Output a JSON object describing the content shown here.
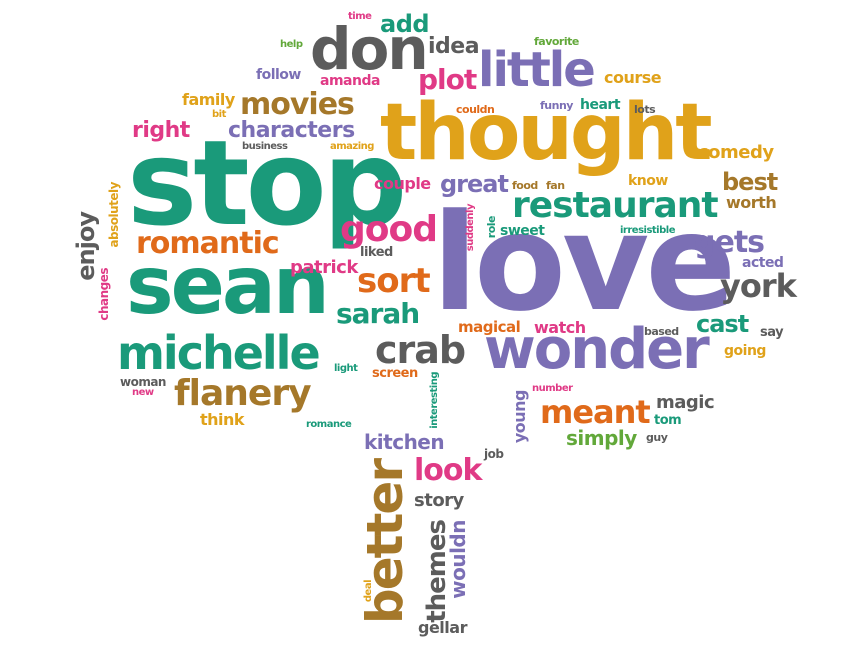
{
  "palette": {
    "teal": "#1a9a7a",
    "purple": "#7b6fb5",
    "gold": "#e0a21a",
    "pink": "#e03a86",
    "brown": "#a5782a",
    "gray": "#5c5c5c",
    "orange": "#e06a1a",
    "green": "#62a83a"
  },
  "words": [
    {
      "id": "love",
      "text": "love",
      "color": "purple"
    },
    {
      "id": "stop",
      "text": "stop",
      "color": "teal"
    },
    {
      "id": "thought",
      "text": "thought",
      "color": "gold"
    },
    {
      "id": "sean",
      "text": "sean",
      "color": "teal"
    },
    {
      "id": "wonder",
      "text": "wonder",
      "color": "purple"
    },
    {
      "id": "michelle",
      "text": "michelle",
      "color": "teal"
    },
    {
      "id": "don",
      "text": "don",
      "color": "gray"
    },
    {
      "id": "little",
      "text": "little",
      "color": "purple"
    },
    {
      "id": "better",
      "text": "better",
      "color": "brown"
    },
    {
      "id": "restaurant",
      "text": "restaurant",
      "color": "teal"
    },
    {
      "id": "flanery",
      "text": "flanery",
      "color": "brown"
    },
    {
      "id": "crab",
      "text": "crab",
      "color": "gray"
    },
    {
      "id": "movies",
      "text": "movies",
      "color": "brown"
    },
    {
      "id": "good",
      "text": "good",
      "color": "pink"
    },
    {
      "id": "romantic",
      "text": "romantic",
      "color": "orange"
    },
    {
      "id": "sort",
      "text": "sort",
      "color": "orange"
    },
    {
      "id": "sarah",
      "text": "sarah",
      "color": "teal"
    },
    {
      "id": "meant",
      "text": "meant",
      "color": "orange"
    },
    {
      "id": "york",
      "text": "york",
      "color": "gray"
    },
    {
      "id": "gets",
      "text": "gets",
      "color": "purple"
    },
    {
      "id": "characters",
      "text": "characters",
      "color": "purple"
    },
    {
      "id": "plot",
      "text": "plot",
      "color": "pink"
    },
    {
      "id": "great",
      "text": "great",
      "color": "purple"
    },
    {
      "id": "look",
      "text": "look",
      "color": "pink"
    },
    {
      "id": "cast",
      "text": "cast",
      "color": "teal"
    },
    {
      "id": "best",
      "text": "best",
      "color": "brown"
    },
    {
      "id": "themes",
      "text": "themes",
      "color": "gray"
    },
    {
      "id": "enjoy",
      "text": "enjoy",
      "color": "gray"
    },
    {
      "id": "right",
      "text": "right",
      "color": "pink"
    },
    {
      "id": "add",
      "text": "add",
      "color": "teal"
    },
    {
      "id": "idea",
      "text": "idea",
      "color": "gray"
    },
    {
      "id": "kitchen",
      "text": "kitchen",
      "color": "purple"
    },
    {
      "id": "simply",
      "text": "simply",
      "color": "green"
    },
    {
      "id": "comedy",
      "text": "comedy",
      "color": "gold"
    },
    {
      "id": "wouldn",
      "text": "wouldn",
      "color": "purple"
    },
    {
      "id": "patrick",
      "text": "patrick",
      "color": "pink"
    },
    {
      "id": "family",
      "text": "family",
      "color": "gold"
    },
    {
      "id": "couple",
      "text": "couple",
      "color": "pink"
    },
    {
      "id": "worth",
      "text": "worth",
      "color": "brown"
    },
    {
      "id": "magic",
      "text": "magic",
      "color": "gray"
    },
    {
      "id": "story",
      "text": "story",
      "color": "gray"
    },
    {
      "id": "course",
      "text": "course",
      "color": "gold"
    },
    {
      "id": "follow",
      "text": "follow",
      "color": "purple"
    },
    {
      "id": "amanda",
      "text": "amanda",
      "color": "pink"
    },
    {
      "id": "watch",
      "text": "watch",
      "color": "pink"
    },
    {
      "id": "magical",
      "text": "magical",
      "color": "orange"
    },
    {
      "id": "think",
      "text": "think",
      "color": "gold"
    },
    {
      "id": "young",
      "text": "young",
      "color": "purple"
    },
    {
      "id": "gellar",
      "text": "gellar",
      "color": "gray"
    },
    {
      "id": "know",
      "text": "know",
      "color": "gold"
    },
    {
      "id": "acted",
      "text": "acted",
      "color": "purple"
    },
    {
      "id": "going",
      "text": "going",
      "color": "gold"
    },
    {
      "id": "heart",
      "text": "heart",
      "color": "teal"
    },
    {
      "id": "sweet",
      "text": "sweet",
      "color": "teal"
    },
    {
      "id": "liked",
      "text": "liked",
      "color": "gray"
    },
    {
      "id": "screen",
      "text": "screen",
      "color": "orange"
    },
    {
      "id": "woman",
      "text": "woman",
      "color": "gray"
    },
    {
      "id": "say",
      "text": "say",
      "color": "gray"
    },
    {
      "id": "tom",
      "text": "tom",
      "color": "teal"
    },
    {
      "id": "job",
      "text": "job",
      "color": "gray"
    },
    {
      "id": "guy",
      "text": "guy",
      "color": "gray"
    },
    {
      "id": "based",
      "text": "based",
      "color": "gray"
    },
    {
      "id": "lots",
      "text": "lots",
      "color": "gray"
    },
    {
      "id": "funny",
      "text": "funny",
      "color": "purple"
    },
    {
      "id": "favorite",
      "text": "favorite",
      "color": "green"
    },
    {
      "id": "help",
      "text": "help",
      "color": "green"
    },
    {
      "id": "time",
      "text": "time",
      "color": "pink"
    },
    {
      "id": "bit",
      "text": "bit",
      "color": "gold"
    },
    {
      "id": "business",
      "text": "business",
      "color": "gray"
    },
    {
      "id": "amazing",
      "text": "amazing",
      "color": "gold"
    },
    {
      "id": "couldn",
      "text": "couldn",
      "color": "orange"
    },
    {
      "id": "food",
      "text": "food",
      "color": "brown"
    },
    {
      "id": "fan",
      "text": "fan",
      "color": "brown"
    },
    {
      "id": "irresistible",
      "text": "irresistible",
      "color": "teal"
    },
    {
      "id": "role",
      "text": "role",
      "color": "teal"
    },
    {
      "id": "suddenly",
      "text": "suddenly",
      "color": "pink"
    },
    {
      "id": "light",
      "text": "light",
      "color": "teal"
    },
    {
      "id": "interesting",
      "text": "interesting",
      "color": "teal"
    },
    {
      "id": "romance",
      "text": "romance",
      "color": "teal"
    },
    {
      "id": "number",
      "text": "number",
      "color": "pink"
    },
    {
      "id": "new",
      "text": "new",
      "color": "pink"
    },
    {
      "id": "deal",
      "text": "deal",
      "color": "gold"
    },
    {
      "id": "absolutely",
      "text": "absolutely",
      "color": "gold"
    },
    {
      "id": "changes",
      "text": "changes",
      "color": "pink"
    }
  ]
}
